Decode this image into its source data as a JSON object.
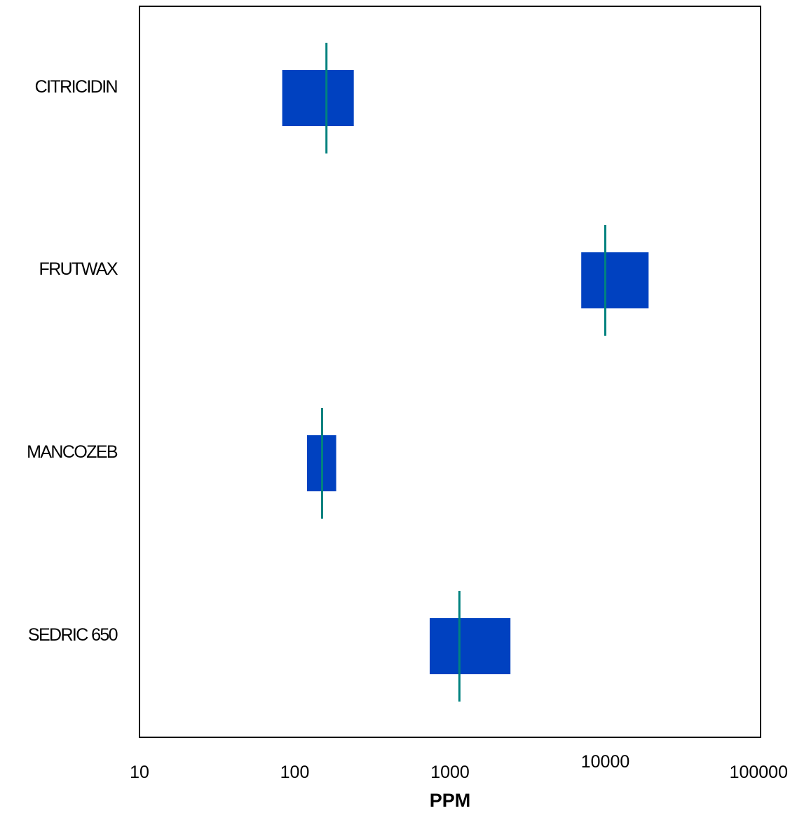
{
  "chart_data": {
    "type": "bar",
    "orientation": "horizontal",
    "x_scale": "log",
    "xlim": [
      10,
      100000
    ],
    "x_ticks": [
      "10",
      "100",
      "1000",
      "10000",
      "100000"
    ],
    "xlabel": "PPM",
    "ylabel": "",
    "title": "",
    "grid": false,
    "categories": [
      "CITRICIDIN",
      "FRUTWAX",
      "MANCOZEB",
      "SEDRIC 650"
    ],
    "ranges": [
      {
        "low": 83,
        "high": 240,
        "marker": 160
      },
      {
        "low": 7000,
        "high": 19000,
        "marker": 10000
      },
      {
        "low": 120,
        "high": 185,
        "marker": 150
      },
      {
        "low": 740,
        "high": 2450,
        "marker": 1150
      }
    ],
    "colors": {
      "bar": "#0041c0",
      "marker": "#00827f",
      "frame": "#000000"
    }
  }
}
